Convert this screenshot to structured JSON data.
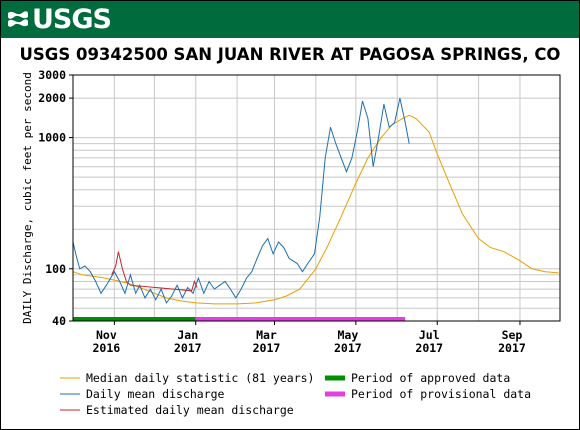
{
  "banner": {
    "logo_text": "USGS",
    "color": "#006b3c"
  },
  "chart_data": {
    "type": "line",
    "title": "USGS 09342500 SAN JUAN RIVER AT PAGOSA SPRINGS, CO",
    "ylabel": "DAILY Discharge, cubic feet per second",
    "xlabel": "",
    "y_scale": "log",
    "ylim": [
      40,
      3000
    ],
    "x_range": [
      "2016-10-01",
      "2017-09-30"
    ],
    "y_ticks": [
      {
        "value": 40,
        "label": "40"
      },
      {
        "value": 100,
        "label": "100"
      },
      {
        "value": 1000,
        "label": "1000"
      },
      {
        "value": 2000,
        "label": "2000"
      },
      {
        "value": 3000,
        "label": "3000"
      }
    ],
    "y_gridlines": [
      40,
      50,
      60,
      70,
      80,
      90,
      100,
      200,
      300,
      400,
      500,
      600,
      700,
      800,
      900,
      1000,
      2000,
      3000
    ],
    "x_ticks": [
      {
        "date": "2016-11-01",
        "month": "Nov",
        "year": "2016"
      },
      {
        "date": "2017-01-01",
        "month": "Jan",
        "year": "2017"
      },
      {
        "date": "2017-03-01",
        "month": "Mar",
        "year": "2017"
      },
      {
        "date": "2017-05-01",
        "month": "May",
        "year": "2017"
      },
      {
        "date": "2017-07-01",
        "month": "Jul",
        "year": "2017"
      },
      {
        "date": "2017-09-01",
        "month": "Sep",
        "year": "2017"
      }
    ],
    "x_gridlines": [
      "2016-11-01",
      "2016-12-01",
      "2017-01-01",
      "2017-02-01",
      "2017-03-01",
      "2017-04-01",
      "2017-05-01",
      "2017-06-01",
      "2017-07-01",
      "2017-08-01",
      "2017-09-01"
    ],
    "grid": true,
    "series": [
      {
        "name": "Median daily statistic (81 years)",
        "color": "#e8a000",
        "points": [
          [
            "2016-10-01",
            95
          ],
          [
            "2016-10-08",
            90
          ],
          [
            "2016-10-15",
            88
          ],
          [
            "2016-10-22",
            86
          ],
          [
            "2016-11-01",
            82
          ],
          [
            "2016-11-10",
            78
          ],
          [
            "2016-11-20",
            72
          ],
          [
            "2016-12-01",
            65
          ],
          [
            "2016-12-10",
            60
          ],
          [
            "2016-12-20",
            57
          ],
          [
            "2017-01-01",
            55
          ],
          [
            "2017-01-15",
            54
          ],
          [
            "2017-02-01",
            54
          ],
          [
            "2017-02-15",
            55
          ],
          [
            "2017-03-01",
            58
          ],
          [
            "2017-03-10",
            62
          ],
          [
            "2017-03-20",
            70
          ],
          [
            "2017-04-01",
            100
          ],
          [
            "2017-04-10",
            150
          ],
          [
            "2017-04-20",
            250
          ],
          [
            "2017-05-01",
            450
          ],
          [
            "2017-05-10",
            700
          ],
          [
            "2017-05-20",
            1000
          ],
          [
            "2017-05-28",
            1250
          ],
          [
            "2017-06-05",
            1400
          ],
          [
            "2017-06-10",
            1480
          ],
          [
            "2017-06-15",
            1400
          ],
          [
            "2017-06-25",
            1100
          ],
          [
            "2017-07-01",
            750
          ],
          [
            "2017-07-10",
            450
          ],
          [
            "2017-07-20",
            260
          ],
          [
            "2017-08-01",
            170
          ],
          [
            "2017-08-10",
            145
          ],
          [
            "2017-08-20",
            135
          ],
          [
            "2017-09-01",
            115
          ],
          [
            "2017-09-10",
            100
          ],
          [
            "2017-09-20",
            95
          ],
          [
            "2017-09-30",
            93
          ]
        ]
      },
      {
        "name": "Daily mean discharge",
        "color": "#1f6fb2",
        "points": [
          [
            "2016-10-01",
            160
          ],
          [
            "2016-10-03",
            130
          ],
          [
            "2016-10-06",
            100
          ],
          [
            "2016-10-10",
            105
          ],
          [
            "2016-10-14",
            95
          ],
          [
            "2016-10-18",
            80
          ],
          [
            "2016-10-22",
            65
          ],
          [
            "2016-10-26",
            75
          ],
          [
            "2016-11-01",
            95
          ],
          [
            "2016-11-05",
            80
          ],
          [
            "2016-11-09",
            65
          ],
          [
            "2016-11-13",
            90
          ],
          [
            "2016-11-17",
            65
          ],
          [
            "2016-11-20",
            75
          ],
          [
            "2016-11-24",
            60
          ],
          [
            "2016-11-28",
            70
          ],
          [
            "2016-12-02",
            58
          ],
          [
            "2016-12-06",
            70
          ],
          [
            "2016-12-10",
            55
          ],
          [
            "2016-12-14",
            62
          ],
          [
            "2016-12-18",
            75
          ],
          [
            "2016-12-22",
            60
          ],
          [
            "2016-12-26",
            72
          ],
          [
            "2016-12-30",
            65
          ],
          [
            "2017-01-03",
            85
          ],
          [
            "2017-01-07",
            65
          ],
          [
            "2017-01-11",
            80
          ],
          [
            "2017-01-15",
            70
          ],
          [
            "2017-01-19",
            75
          ],
          [
            "2017-01-23",
            80
          ],
          [
            "2017-01-27",
            70
          ],
          [
            "2017-01-31",
            60
          ],
          [
            "2017-02-04",
            70
          ],
          [
            "2017-02-08",
            85
          ],
          [
            "2017-02-12",
            95
          ],
          [
            "2017-02-16",
            120
          ],
          [
            "2017-02-20",
            150
          ],
          [
            "2017-02-24",
            170
          ],
          [
            "2017-02-28",
            130
          ],
          [
            "2017-03-04",
            160
          ],
          [
            "2017-03-08",
            145
          ],
          [
            "2017-03-12",
            120
          ],
          [
            "2017-03-18",
            110
          ],
          [
            "2017-03-22",
            95
          ],
          [
            "2017-03-26",
            110
          ],
          [
            "2017-03-31",
            130
          ],
          [
            "2017-04-04",
            250
          ],
          [
            "2017-04-08",
            700
          ],
          [
            "2017-04-12",
            1200
          ],
          [
            "2017-04-16",
            900
          ],
          [
            "2017-04-20",
            700
          ],
          [
            "2017-04-24",
            550
          ],
          [
            "2017-04-28",
            700
          ],
          [
            "2017-05-02",
            1100
          ],
          [
            "2017-05-06",
            1900
          ],
          [
            "2017-05-10",
            1400
          ],
          [
            "2017-05-14",
            600
          ],
          [
            "2017-05-18",
            1000
          ],
          [
            "2017-05-22",
            1800
          ],
          [
            "2017-05-26",
            1200
          ],
          [
            "2017-05-30",
            1300
          ],
          [
            "2017-06-03",
            2000
          ],
          [
            "2017-06-07",
            1300
          ],
          [
            "2017-06-10",
            900
          ]
        ]
      },
      {
        "name": "Estimated daily mean discharge",
        "color": "#c0262d",
        "points": [
          [
            "2016-10-30",
            90
          ],
          [
            "2016-11-02",
            105
          ],
          [
            "2016-11-04",
            135
          ],
          [
            "2016-11-07",
            100
          ],
          [
            "2016-11-10",
            80
          ],
          [
            "2016-11-13",
            75
          ],
          [
            "2016-12-29",
            68
          ],
          [
            "2016-12-31",
            80
          ],
          [
            "2017-01-02",
            72
          ]
        ]
      }
    ],
    "periods": [
      {
        "name": "Period of approved data",
        "color": "#008f00",
        "start": "2016-10-01",
        "end": "2017-01-01"
      },
      {
        "name": "Period of provisional data",
        "color": "#e040e0",
        "start": "2017-01-01",
        "end": "2017-06-07"
      }
    ]
  },
  "legend": [
    {
      "label": "Median daily statistic (81 years)",
      "color": "#e8a000",
      "kind": "line"
    },
    {
      "label": "Period of approved data",
      "color": "#008f00",
      "kind": "bar"
    },
    {
      "label": "Daily mean discharge",
      "color": "#1f6fb2",
      "kind": "line"
    },
    {
      "label": "Period of provisional data",
      "color": "#e040e0",
      "kind": "bar"
    },
    {
      "label": "Estimated daily mean discharge",
      "color": "#c0262d",
      "kind": "line"
    }
  ]
}
